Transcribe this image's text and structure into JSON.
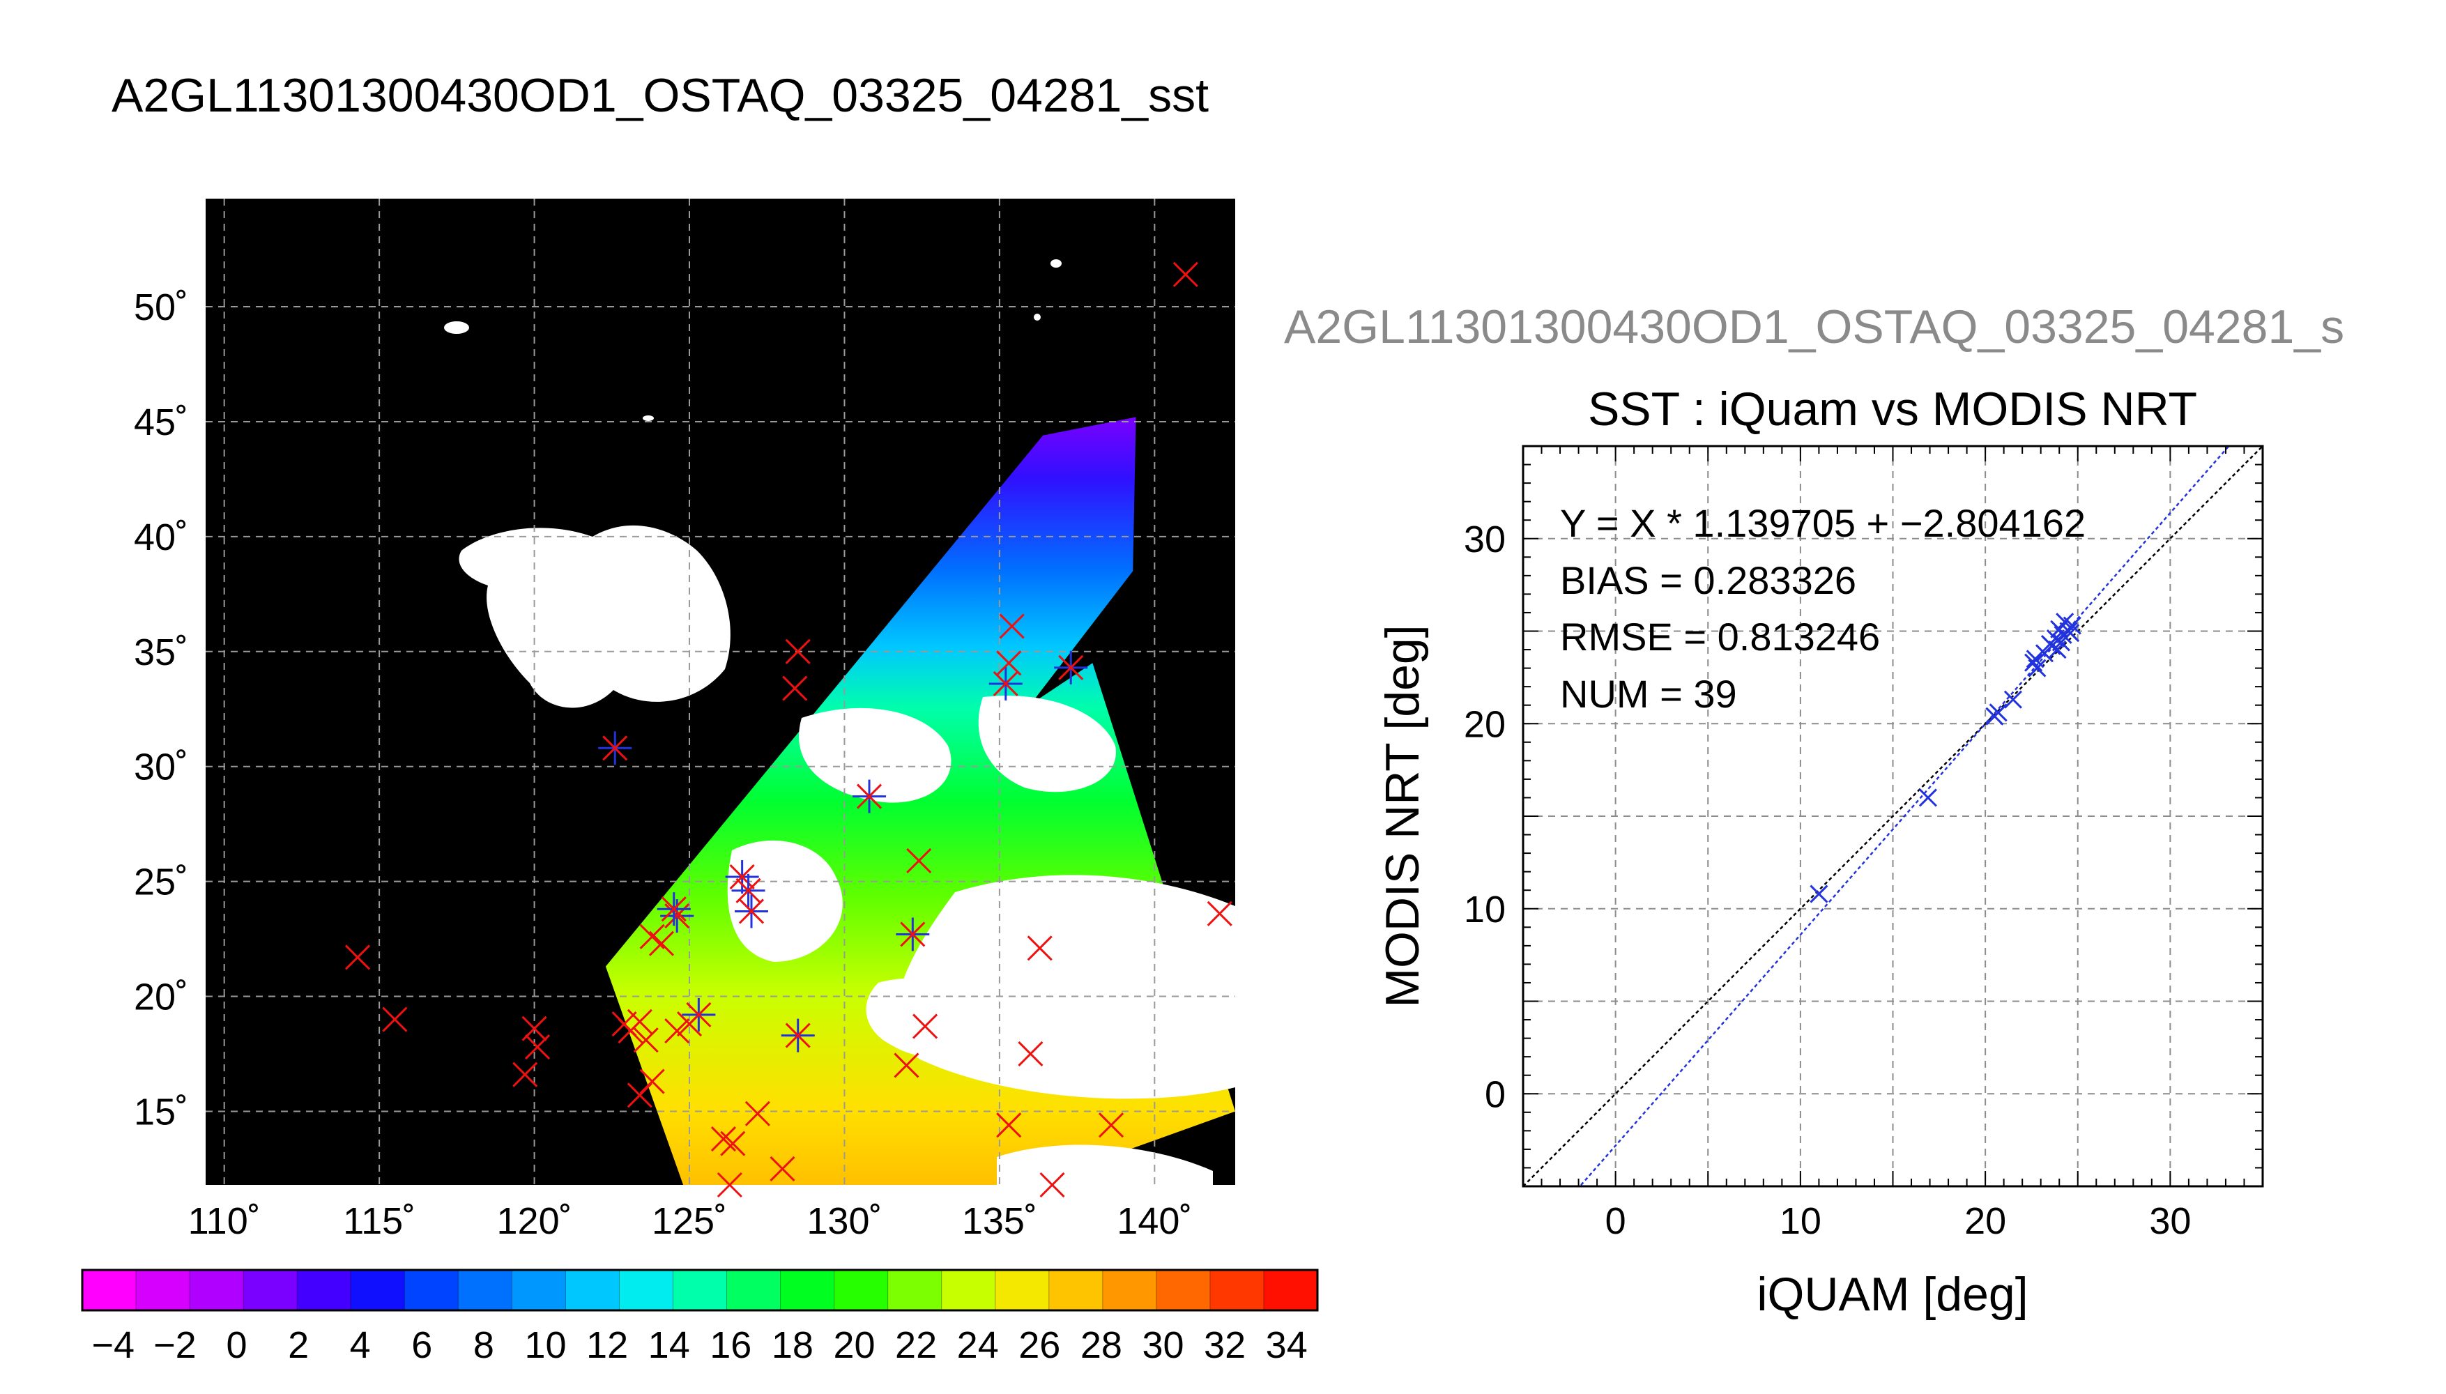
{
  "page": {
    "title": "A2GL11301300430OD1_OSTAQ_03325_04281_sst",
    "secondary_title": "A2GL11301300430OD1_OSTAQ_03325_04281_s"
  },
  "chart_data": [
    {
      "type": "map",
      "x": {
        "range": [
          109.4,
          142.6
        ],
        "tick_values": [
          110,
          115,
          120,
          125,
          130,
          135,
          140
        ],
        "tick_labels": [
          "110˚",
          "115˚",
          "120˚",
          "125˚",
          "130˚",
          "135˚",
          "140˚"
        ]
      },
      "y": {
        "range": [
          11.8,
          54.7
        ],
        "tick_values": [
          15,
          20,
          25,
          30,
          35,
          40,
          45,
          50
        ],
        "tick_labels": [
          "15˚",
          "20˚",
          "25˚",
          "30˚",
          "35˚",
          "40˚",
          "45˚",
          "50˚"
        ]
      },
      "grid": true,
      "background": "#000000",
      "swath_corners_lon_lat": [
        [
          122.3,
          21.3
        ],
        [
          136.4,
          44.4
        ],
        [
          139.4,
          45.2
        ],
        [
          139.3,
          38.5
        ],
        [
          136.0,
          32.7
        ],
        [
          138.0,
          34.5
        ],
        [
          142.6,
          15.0
        ],
        [
          136.0,
          11.8
        ],
        [
          124.8,
          11.8
        ]
      ],
      "markers": [
        {
          "lon": 141.0,
          "lat": 51.4,
          "blue": false
        },
        {
          "lon": 114.3,
          "lat": 21.7,
          "blue": false
        },
        {
          "lon": 115.5,
          "lat": 19.0,
          "blue": false
        },
        {
          "lon": 120.0,
          "lat": 18.6,
          "blue": false
        },
        {
          "lon": 120.1,
          "lat": 17.8,
          "blue": false
        },
        {
          "lon": 119.7,
          "lat": 16.6,
          "blue": false
        },
        {
          "lon": 122.9,
          "lat": 18.8,
          "blue": false
        },
        {
          "lon": 123.1,
          "lat": 18.5,
          "blue": false
        },
        {
          "lon": 123.4,
          "lat": 18.9,
          "blue": false
        },
        {
          "lon": 123.6,
          "lat": 18.1,
          "blue": false
        },
        {
          "lon": 123.4,
          "lat": 15.7,
          "blue": false
        },
        {
          "lon": 123.8,
          "lat": 16.3,
          "blue": false
        },
        {
          "lon": 123.8,
          "lat": 22.6,
          "blue": false
        },
        {
          "lon": 124.1,
          "lat": 22.3,
          "blue": false
        },
        {
          "lon": 124.6,
          "lat": 18.5,
          "blue": false
        },
        {
          "lon": 125.0,
          "lat": 18.8,
          "blue": false
        },
        {
          "lon": 125.3,
          "lat": 19.2,
          "blue": true
        },
        {
          "lon": 124.6,
          "lat": 23.5,
          "blue": true
        },
        {
          "lon": 124.5,
          "lat": 23.8,
          "blue": true
        },
        {
          "lon": 126.7,
          "lat": 25.2,
          "blue": true
        },
        {
          "lon": 126.9,
          "lat": 24.6,
          "blue": true
        },
        {
          "lon": 127.0,
          "lat": 23.7,
          "blue": true
        },
        {
          "lon": 122.6,
          "lat": 30.8,
          "blue": true
        },
        {
          "lon": 130.8,
          "lat": 28.7,
          "blue": true
        },
        {
          "lon": 132.2,
          "lat": 22.7,
          "blue": true
        },
        {
          "lon": 128.5,
          "lat": 18.3,
          "blue": true
        },
        {
          "lon": 137.3,
          "lat": 34.3,
          "blue": true
        },
        {
          "lon": 135.2,
          "lat": 33.6,
          "blue": true
        },
        {
          "lon": 135.4,
          "lat": 36.1,
          "blue": false
        },
        {
          "lon": 135.3,
          "lat": 34.5,
          "blue": false
        },
        {
          "lon": 128.5,
          "lat": 35.0,
          "blue": false
        },
        {
          "lon": 128.4,
          "lat": 33.4,
          "blue": false
        },
        {
          "lon": 132.4,
          "lat": 25.9,
          "blue": false
        },
        {
          "lon": 136.3,
          "lat": 22.1,
          "blue": false
        },
        {
          "lon": 132.6,
          "lat": 18.7,
          "blue": false
        },
        {
          "lon": 132.0,
          "lat": 17.0,
          "blue": false
        },
        {
          "lon": 136.0,
          "lat": 17.5,
          "blue": false
        },
        {
          "lon": 142.1,
          "lat": 23.6,
          "blue": false
        },
        {
          "lon": 127.2,
          "lat": 14.9,
          "blue": false
        },
        {
          "lon": 126.1,
          "lat": 13.8,
          "blue": false
        },
        {
          "lon": 126.4,
          "lat": 13.6,
          "blue": false
        },
        {
          "lon": 126.3,
          "lat": 11.8,
          "blue": false
        },
        {
          "lon": 128.0,
          "lat": 12.5,
          "blue": false
        },
        {
          "lon": 135.3,
          "lat": 14.4,
          "blue": false
        },
        {
          "lon": 138.6,
          "lat": 14.4,
          "blue": false
        },
        {
          "lon": 136.7,
          "lat": 11.8,
          "blue": false
        }
      ],
      "colorbar": {
        "range": [
          -5,
          35
        ],
        "tick_labels": [
          "−4",
          "−2",
          "0",
          "2",
          "4",
          "6",
          "8",
          "10",
          "12",
          "14",
          "16",
          "18",
          "20",
          "22",
          "24",
          "26",
          "28",
          "30",
          "32",
          "34"
        ],
        "colors": [
          "#ff00ff",
          "#d600ff",
          "#b000ff",
          "#7a00ff",
          "#4400ff",
          "#1010ff",
          "#0044ff",
          "#0070ff",
          "#0098ff",
          "#00c8ff",
          "#00ecef",
          "#00ffaa",
          "#00ff60",
          "#00ff20",
          "#26ff00",
          "#7cff00",
          "#c8ff00",
          "#f4e800",
          "#ffc400",
          "#ff9800",
          "#ff6800",
          "#ff3800",
          "#ff1000"
        ]
      }
    },
    {
      "type": "scatter",
      "title": "SST : iQuam vs MODIS NRT",
      "xlabel": "iQUAM [deg]",
      "ylabel": "MODIS NRT [deg]",
      "xlim": [
        -5,
        35
      ],
      "ylim": [
        -5,
        35
      ],
      "ticks": [
        0,
        10,
        20,
        30
      ],
      "tick_labels": [
        "0",
        "10",
        "20",
        "30"
      ],
      "grid": true,
      "annotations": [
        "Y = X * 1.139705 + −2.804162",
        "BIAS = 0.283326",
        "RMSE = 0.813246",
        "NUM = 39"
      ],
      "fit": {
        "slope": 1.139705,
        "intercept": -2.804162
      },
      "points_x": [
        11.0,
        16.9,
        20.5,
        21.5,
        22.6,
        22.8,
        23.2,
        23.5,
        23.8,
        24.0,
        24.3,
        24.5,
        24.1,
        24.7,
        23.9,
        22.7,
        20.7,
        24.2,
        24.6,
        23.6
      ],
      "points_y": [
        10.8,
        16.0,
        20.4,
        21.3,
        23.3,
        23.0,
        23.8,
        24.3,
        24.6,
        25.1,
        25.5,
        25.0,
        24.4,
        25.3,
        24.0,
        23.5,
        20.6,
        24.8,
        24.9,
        24.2
      ]
    }
  ]
}
